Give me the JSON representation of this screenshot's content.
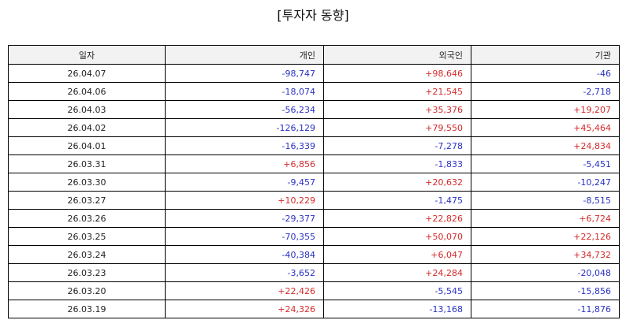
{
  "title": "[투자자 동향]",
  "colors": {
    "positive": "#d42a2a",
    "negative": "#2a32c2",
    "header_bg": "#f2f2f2"
  },
  "table": {
    "headers": [
      "일자",
      "개인",
      "외국인",
      "기관"
    ],
    "rows": [
      [
        "26.04.07",
        "-98,747",
        "+98,646",
        "-46"
      ],
      [
        "26.04.06",
        "-18,074",
        "+21,545",
        "-2,718"
      ],
      [
        "26.04.03",
        "-56,234",
        "+35,376",
        "+19,207"
      ],
      [
        "26.04.02",
        "-126,129",
        "+79,550",
        "+45,464"
      ],
      [
        "26.04.01",
        "-16,339",
        "-7,278",
        "+24,834"
      ],
      [
        "26.03.31",
        "+6,856",
        "-1,833",
        "-5,451"
      ],
      [
        "26.03.30",
        "-9,457",
        "+20,632",
        "-10,247"
      ],
      [
        "26.03.27",
        "+10,229",
        "-1,475",
        "-8,515"
      ],
      [
        "26.03.26",
        "-29,377",
        "+22,826",
        "+6,724"
      ],
      [
        "26.03.25",
        "-70,355",
        "+50,070",
        "+22,126"
      ],
      [
        "26.03.24",
        "-40,384",
        "+6,047",
        "+34,732"
      ],
      [
        "26.03.23",
        "-3,652",
        "+24,284",
        "-20,048"
      ],
      [
        "26.03.20",
        "+22,426",
        "-5,545",
        "-15,856"
      ],
      [
        "26.03.19",
        "+24,326",
        "-13,168",
        "-11,876"
      ]
    ]
  }
}
